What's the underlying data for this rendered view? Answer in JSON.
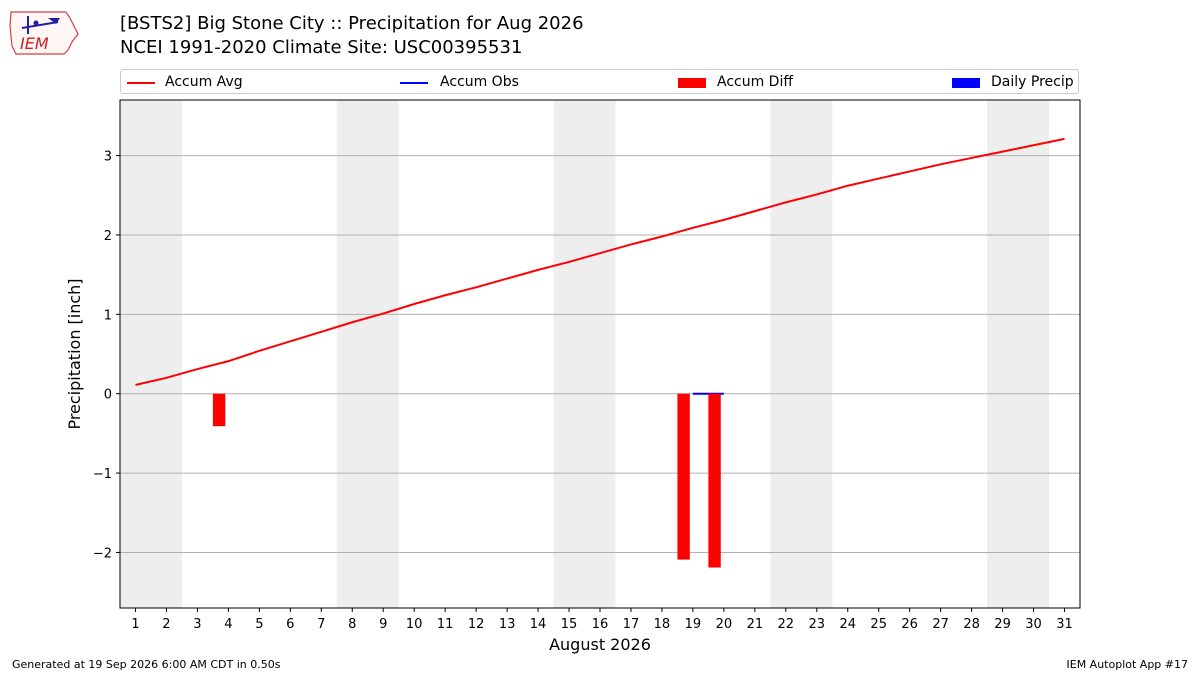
{
  "title_line1": "[BSTS2] Big Stone City :: Precipitation for Aug 2026",
  "title_line2": "NCEI 1991-2020 Climate Site: USC00395531",
  "logo_text": "IEM",
  "footer_left": "Generated at 19 Sep 2026 6:00 AM CDT in 0.50s",
  "footer_right": "IEM Autoplot App #17",
  "legend": [
    {
      "label": "Accum Avg",
      "kind": "line",
      "color": "#ff0000"
    },
    {
      "label": "Accum Obs",
      "kind": "line",
      "color": "#0000ff"
    },
    {
      "label": "Accum Diff",
      "kind": "bar",
      "color": "#ff0000"
    },
    {
      "label": "Daily Precip",
      "kind": "bar",
      "color": "#0000ff"
    }
  ],
  "chart_data": {
    "type": "line",
    "xlabel": "August 2026",
    "ylabel": "Precipitation [inch]",
    "x_ticks": [
      "1",
      "2",
      "3",
      "4",
      "5",
      "6",
      "7",
      "8",
      "9",
      "10",
      "11",
      "12",
      "13",
      "14",
      "15",
      "16",
      "17",
      "18",
      "19",
      "20",
      "21",
      "22",
      "23",
      "24",
      "25",
      "26",
      "27",
      "28",
      "29",
      "30",
      "31"
    ],
    "y_ticks": [
      -2,
      -1,
      0,
      1,
      2,
      3
    ],
    "xlim": [
      0.5,
      31.5
    ],
    "ylim": [
      -2.7,
      3.7
    ],
    "grid": "horizontal",
    "weekend_shading": [
      [
        1,
        2
      ],
      [
        8,
        9
      ],
      [
        15,
        16
      ],
      [
        22,
        23
      ],
      [
        29,
        30
      ]
    ],
    "weekend_color": "#eeeeee",
    "series": [
      {
        "name": "Accum Avg",
        "type": "line",
        "color": "#ff0000",
        "x": [
          1,
          2,
          3,
          4,
          5,
          6,
          7,
          8,
          9,
          10,
          11,
          12,
          13,
          14,
          15,
          16,
          17,
          18,
          19,
          20,
          21,
          22,
          23,
          24,
          25,
          26,
          27,
          28,
          29,
          30,
          31
        ],
        "values": [
          0.11,
          0.2,
          0.31,
          0.41,
          0.54,
          0.66,
          0.78,
          0.9,
          1.01,
          1.13,
          1.24,
          1.34,
          1.45,
          1.56,
          1.66,
          1.77,
          1.88,
          1.98,
          2.09,
          2.19,
          2.3,
          2.41,
          2.51,
          2.62,
          2.71,
          2.8,
          2.89,
          2.97,
          3.05,
          3.13,
          3.21
        ]
      },
      {
        "name": "Accum Obs",
        "type": "line",
        "color": "#0000ff",
        "x": [
          19,
          20
        ],
        "values": [
          0.0,
          0.0
        ]
      },
      {
        "name": "Accum Diff",
        "type": "bar",
        "color": "#ff0000",
        "x": [
          4,
          19,
          20
        ],
        "values": [
          -0.41,
          -2.09,
          -2.19
        ],
        "x_offset": -0.3
      },
      {
        "name": "Daily Precip",
        "type": "bar",
        "color": "#0000ff",
        "x": [],
        "values": []
      }
    ]
  }
}
